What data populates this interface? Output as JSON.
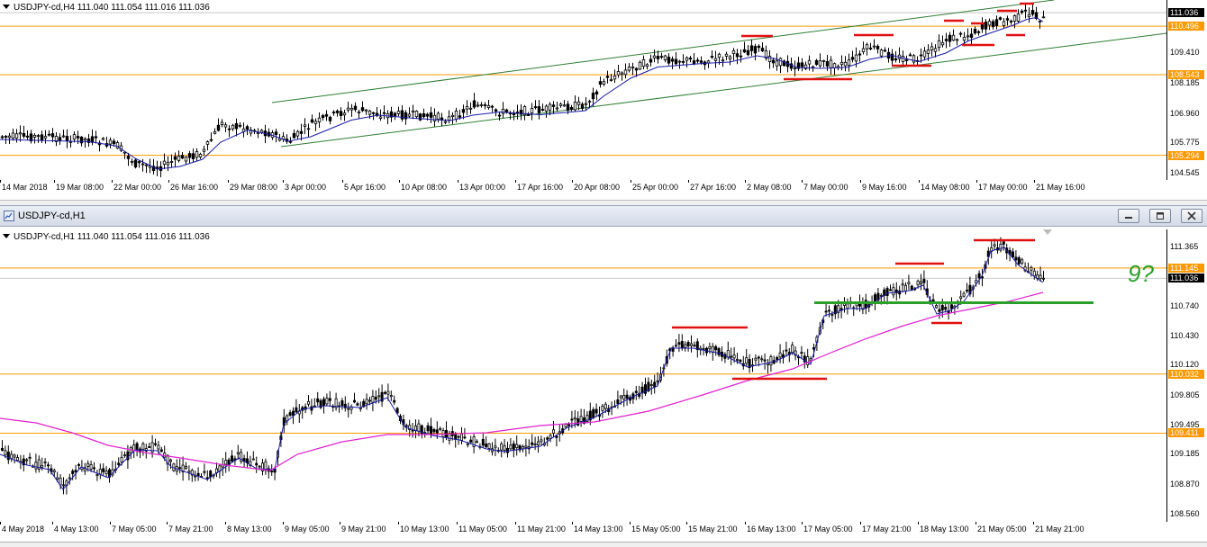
{
  "top_chart": {
    "header": "USDJPY-cd,H4  111.040 111.054 111.016 111.036",
    "price_labels": [
      "111.036",
      "110.496",
      "109.410",
      "108.543",
      "108.185",
      "106.960",
      "105.775",
      "105.294",
      "104.545"
    ],
    "price_levels": [
      111.036,
      110.496,
      109.41,
      108.543,
      108.185,
      106.96,
      105.775,
      105.294,
      104.545
    ],
    "level_tags": [
      {
        "value": "111.036",
        "bg": "#000000",
        "fg": "#ffffff",
        "price": 111.036
      },
      {
        "value": "110.496",
        "bg": "#ff9900",
        "fg": "#ffffff",
        "price": 110.496
      },
      {
        "value": "108.543",
        "bg": "#ff9900",
        "fg": "#ffffff",
        "price": 108.543
      },
      {
        "value": "105.294",
        "bg": "#ff9900",
        "fg": "#ffffff",
        "price": 105.294
      }
    ],
    "x_labels": [
      "14 Mar 2018",
      "19 Mar 08:00",
      "22 Mar 00:00",
      "26 Mar 16:00",
      "29 Mar 08:00",
      "3 Apr 00:00",
      "5 Apr 16:00",
      "10 Apr 08:00",
      "13 Apr 00:00",
      "17 Apr 16:00",
      "20 Apr 08:00",
      "25 Apr 00:00",
      "27 Apr 16:00",
      "2 May 08:00",
      "7 May 00:00",
      "9 May 16:00",
      "14 May 08:00",
      "17 May 00:00",
      "21 May 16:00"
    ],
    "horizontal_levels": [
      110.496,
      108.543,
      105.294
    ],
    "price_range": [
      104.3,
      111.55
    ],
    "colors": {
      "level": "#ff9900",
      "channel": "#2e7d32",
      "ma": "#1a1aa8",
      "annot": "#e01010",
      "candles": "#000000"
    }
  },
  "window": {
    "title": "USDJPY-cd,H1",
    "minimize_icon": "minimize-icon",
    "restore_icon": "restore-icon",
    "close_icon": "close-icon"
  },
  "bottom_chart": {
    "header": "USDJPY-cd,H1  111.040 111.054 111.016 111.036",
    "price_labels": [
      "111.365",
      "110.740",
      "110.430",
      "110.120",
      "109.805",
      "109.495",
      "109.185",
      "108.870",
      "108.560"
    ],
    "price_levels": [
      111.365,
      110.74,
      110.43,
      110.12,
      109.805,
      109.495,
      109.185,
      108.87,
      108.56
    ],
    "level_tags": [
      {
        "value": "111.145",
        "bg": "#ff9900",
        "fg": "#ffffff",
        "price": 111.145
      },
      {
        "value": "111.036",
        "bg": "#000000",
        "fg": "#ffffff",
        "price": 111.036
      },
      {
        "value": "110.032",
        "bg": "#ff9900",
        "fg": "#ffffff",
        "price": 110.032
      },
      {
        "value": "109.411",
        "bg": "#ff9900",
        "fg": "#ffffff",
        "price": 109.411
      }
    ],
    "x_labels": [
      "4 May 2018",
      "4 May 13:00",
      "7 May 05:00",
      "7 May 21:00",
      "8 May 13:00",
      "9 May 05:00",
      "9 May 21:00",
      "10 May 13:00",
      "11 May 05:00",
      "11 May 21:00",
      "14 May 13:00",
      "15 May 05:00",
      "15 May 21:00",
      "16 May 13:00",
      "17 May 05:00",
      "17 May 21:00",
      "18 May 13:00",
      "21 May 05:00",
      "21 May 21:00"
    ],
    "horizontal_levels": [
      111.145,
      110.032,
      109.411
    ],
    "support_level": 110.78,
    "price_range": [
      108.48,
      111.55
    ],
    "annotation_text": "9?",
    "colors": {
      "level": "#ff9900",
      "ma_fast": "#1a1aa8",
      "ma_slow": "#e020d0",
      "support": "#2aa02a",
      "annot": "#e01010",
      "candles": "#000000"
    }
  }
}
